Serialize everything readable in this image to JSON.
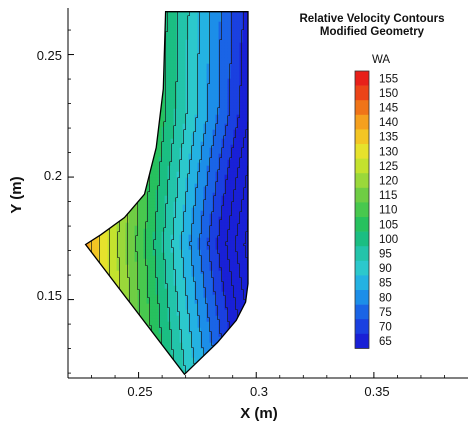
{
  "chart_data": {
    "type": "contour",
    "title_lines": [
      "Relative Velocity Contours",
      "Modified Geometry"
    ],
    "xlabel": "X (m)",
    "ylabel": "Y (m)",
    "xlim": [
      0.22,
      0.39
    ],
    "ylim": [
      0.118,
      0.269
    ],
    "x_ticks": [
      0.25,
      0.3,
      0.35
    ],
    "x_tick_labels": [
      "0.25",
      "0.3",
      "0.35"
    ],
    "y_ticks": [
      0.15,
      0.2,
      0.25
    ],
    "y_tick_labels": [
      "0.15",
      "0.2",
      "0.25"
    ],
    "legend_title": "WA",
    "legend_levels": [
      155,
      150,
      145,
      140,
      135,
      130,
      125,
      120,
      115,
      110,
      105,
      100,
      95,
      90,
      85,
      80,
      75,
      70,
      65
    ],
    "legend_labels": [
      "155",
      "150",
      "145",
      "140",
      "135",
      "130",
      "125",
      "120",
      "115",
      "110",
      "105",
      "100",
      "95",
      "90",
      "85",
      "80",
      "75",
      "70",
      "65"
    ],
    "legend_colors": [
      "#e8201a",
      "#ec4418",
      "#f07418",
      "#f5a01e",
      "#f3c524",
      "#e6e22c",
      "#c4e22e",
      "#9ad83a",
      "#6fcd44",
      "#48c84e",
      "#27c15e",
      "#1bbe82",
      "#23c4aa",
      "#2cc8cc",
      "#24b2e2",
      "#1c8ee8",
      "#1a64e6",
      "#1a40e0",
      "#1920d6"
    ],
    "domain_outline": [
      {
        "x": 0.2615,
        "y": 0.2675
      },
      {
        "x": 0.2965,
        "y": 0.2675
      },
      {
        "x": 0.2965,
        "y": 0.1565
      },
      {
        "x": 0.2955,
        "y": 0.149
      },
      {
        "x": 0.2915,
        "y": 0.1415
      },
      {
        "x": 0.2835,
        "y": 0.1325
      },
      {
        "x": 0.2695,
        "y": 0.1195
      },
      {
        "x": 0.2275,
        "y": 0.1725
      },
      {
        "x": 0.234,
        "y": 0.1765
      },
      {
        "x": 0.244,
        "y": 0.1835
      },
      {
        "x": 0.2525,
        "y": 0.193
      },
      {
        "x": 0.2575,
        "y": 0.212
      },
      {
        "x": 0.2605,
        "y": 0.236
      }
    ]
  }
}
